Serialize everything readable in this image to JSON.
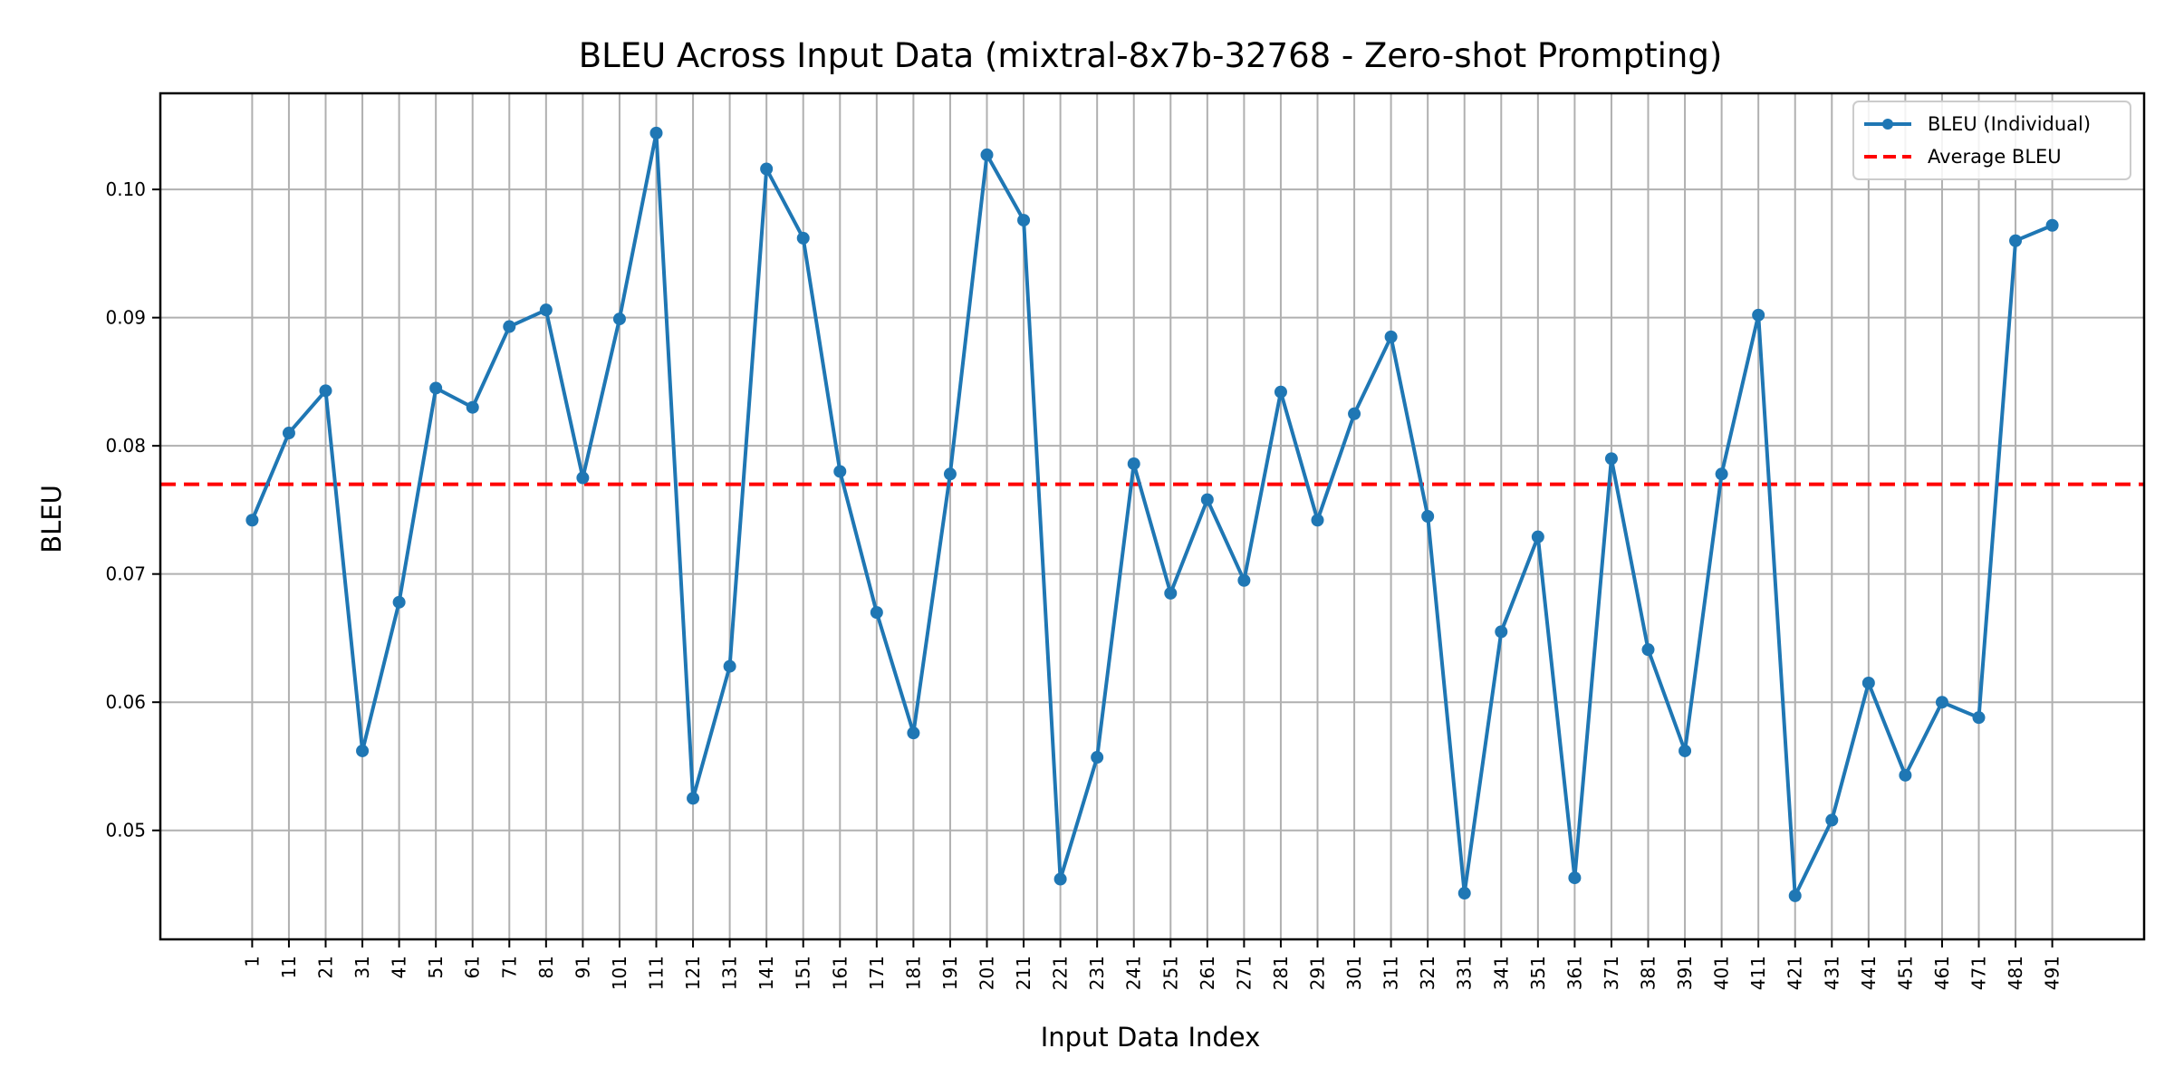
{
  "chart_data": {
    "type": "line",
    "title": "BLEU Across Input Data (mixtral-8x7b-32768 - Zero-shot Prompting)",
    "xlabel": "Input Data Index",
    "ylabel": "BLEU",
    "x": [
      1,
      11,
      21,
      31,
      41,
      51,
      61,
      71,
      81,
      91,
      101,
      111,
      121,
      131,
      141,
      151,
      161,
      171,
      181,
      191,
      201,
      211,
      221,
      231,
      241,
      251,
      261,
      271,
      281,
      291,
      301,
      311,
      321,
      331,
      341,
      351,
      361,
      371,
      381,
      391,
      401,
      411,
      421,
      431,
      441,
      451,
      461,
      471,
      481,
      491
    ],
    "xtick_labels": [
      "1",
      "11",
      "21",
      "31",
      "41",
      "51",
      "61",
      "71",
      "81",
      "91",
      "101",
      "111",
      "121",
      "131",
      "141",
      "151",
      "161",
      "171",
      "181",
      "191",
      "201",
      "211",
      "221",
      "231",
      "241",
      "251",
      "261",
      "271",
      "281",
      "291",
      "301",
      "311",
      "321",
      "331",
      "341",
      "351",
      "361",
      "371",
      "381",
      "391",
      "401",
      "411",
      "421",
      "431",
      "441",
      "451",
      "461",
      "471",
      "481",
      "491"
    ],
    "xlim": [
      -24,
      516
    ],
    "yticks": [
      0.05,
      0.06,
      0.07,
      0.08,
      0.09,
      0.1
    ],
    "ytick_labels": [
      "0.05",
      "0.06",
      "0.07",
      "0.08",
      "0.09",
      "0.10"
    ],
    "ylim": [
      0.0415,
      0.1075
    ],
    "grid": true,
    "legend_position": "top-right",
    "series": [
      {
        "name": "BLEU (Individual)",
        "color": "#1f77b4",
        "marker": "circle",
        "values": [
          0.0742,
          0.081,
          0.0843,
          0.0562,
          0.0678,
          0.0845,
          0.083,
          0.0893,
          0.0906,
          0.0775,
          0.0899,
          0.1044,
          0.0525,
          0.0628,
          0.1016,
          0.0962,
          0.078,
          0.067,
          0.0576,
          0.0778,
          0.1027,
          0.0976,
          0.0462,
          0.0557,
          0.0786,
          0.0685,
          0.0758,
          0.0695,
          0.0842,
          0.0742,
          0.0825,
          0.0885,
          0.0745,
          0.0451,
          0.0655,
          0.0729,
          0.0463,
          0.079,
          0.0641,
          0.0562,
          0.0778,
          0.0902,
          0.0449,
          0.0508,
          0.0615,
          0.0543,
          0.06,
          0.0588,
          0.096,
          0.0972
        ]
      },
      {
        "name": "Average BLEU",
        "color": "#ff0000",
        "style": "dashed",
        "value": 0.077
      }
    ]
  }
}
